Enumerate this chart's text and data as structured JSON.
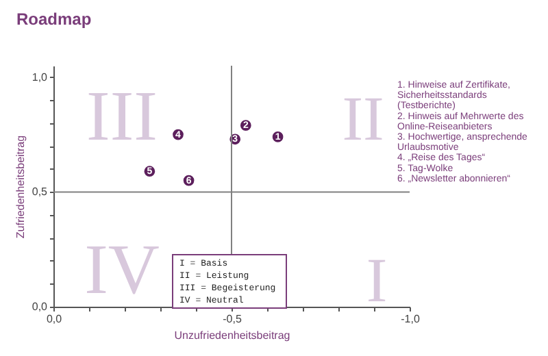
{
  "chart_data": {
    "type": "scatter",
    "title": "Roadmap",
    "xlabel": "Unzufriedenheitsbeitrag",
    "ylabel": "Zufriedenheitsbeitrag",
    "x": [
      -0.63,
      -0.54,
      -0.51,
      -0.35,
      -0.27,
      -0.38
    ],
    "series": [
      {
        "color": "#5c1f5c",
        "values": [
          0.74,
          0.79,
          0.73,
          0.75,
          0.59,
          0.55
        ]
      }
    ],
    "marker": "circle",
    "xlim": [
      0,
      -1.0
    ],
    "xticks": [
      {
        "value": 0,
        "label": "0,0"
      },
      {
        "value": -0.1,
        "label": null
      },
      {
        "value": -0.2,
        "label": null
      },
      {
        "value": -0.3,
        "label": null
      },
      {
        "value": -0.4,
        "label": null
      },
      {
        "value": -0.5,
        "label": "-0,5"
      },
      {
        "value": -0.6,
        "label": null
      },
      {
        "value": -0.7,
        "label": null
      },
      {
        "value": -0.8,
        "label": null
      },
      {
        "value": -0.9,
        "label": null
      },
      {
        "value": -1.0,
        "label": "-1,0"
      }
    ],
    "ylim": [
      0,
      1.05
    ],
    "yticks": [
      {
        "value": 0,
        "label": "0,0"
      },
      {
        "value": 0.1,
        "label": null
      },
      {
        "value": 0.2,
        "label": null
      },
      {
        "value": 0.3,
        "label": null
      },
      {
        "value": 0.4,
        "label": null
      },
      {
        "value": 0.5,
        "label": "0,5"
      },
      {
        "value": 0.6,
        "label": null
      },
      {
        "value": 0.7,
        "label": null
      },
      {
        "value": 0.8,
        "label": null
      },
      {
        "value": 0.9,
        "label": null
      },
      {
        "value": 1.0,
        "label": "1,0"
      }
    ],
    "grid": false,
    "ref_lines": [
      {
        "axis": "x",
        "value": -0.5,
        "color": "#808080"
      },
      {
        "axis": "y",
        "value": 0.5,
        "color": "#808080"
      }
    ],
    "annotations": [
      "III",
      "II",
      "IV",
      "I",
      "I   = Basis\nII  = Leistung\nIII = Begeisterung\nIV = Neutral",
      "1.   Hinweise auf Zertifikate,\n      Sicherheitsstandards\n      (Testberichte)\n2.   Hinweis auf Mehrwerte des\n      Online-Reiseanbieters\n3.   Hochwertige, ansprechende\n      Urlaubsmotive\n4.   „Reise des Tages“\n5.   Tag-Wolke\n6.   „Newsletter abonnieren“",
      {
        "text": "1",
        "x": -0.63,
        "y": 0.74
      },
      {
        "text": "2",
        "x": -0.54,
        "y": 0.79
      },
      {
        "text": "3",
        "x": -0.51,
        "y": 0.73
      },
      {
        "text": "4",
        "x": -0.35,
        "y": 0.75
      },
      {
        "text": "5",
        "x": -0.27,
        "y": 0.59
      },
      {
        "text": "6",
        "x": -0.38,
        "y": 0.55
      }
    ]
  }
}
